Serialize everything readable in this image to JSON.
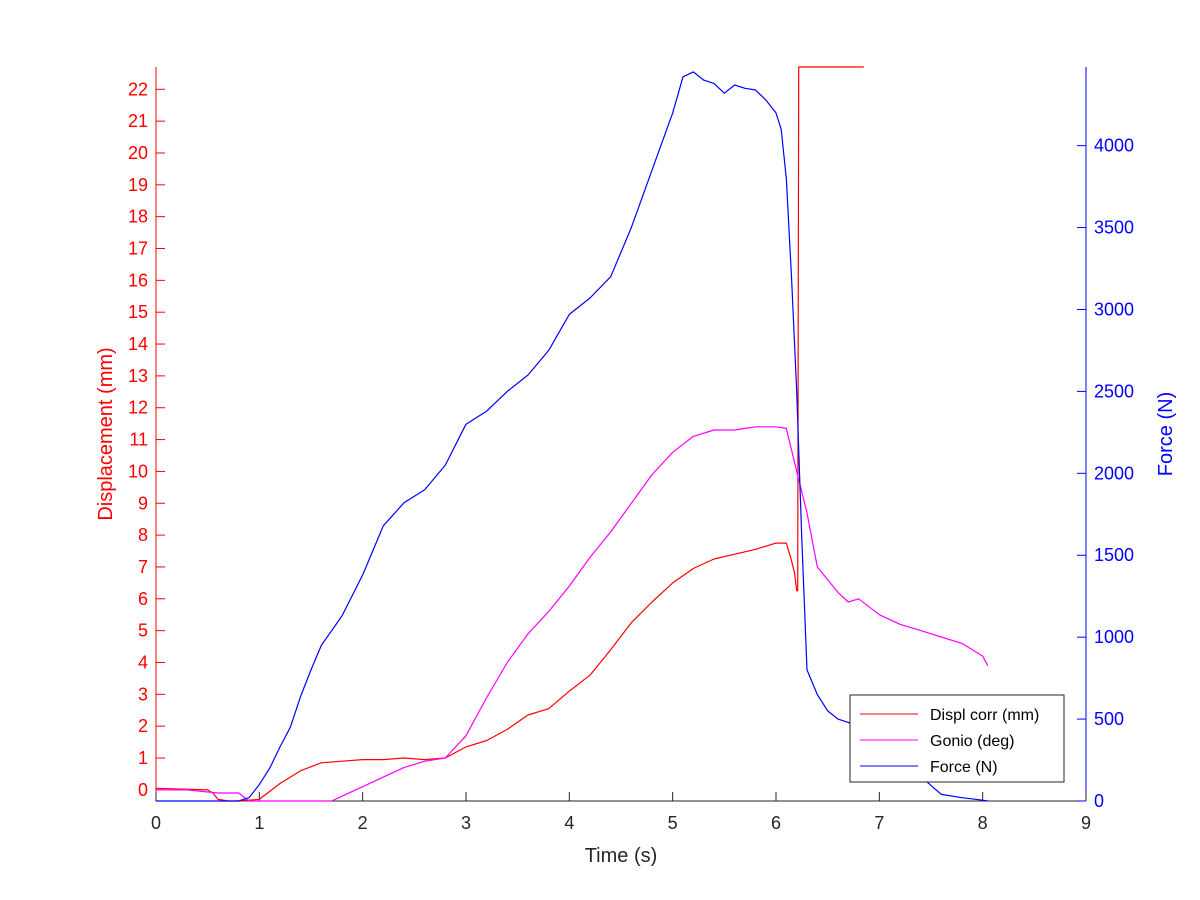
{
  "chart_data": {
    "type": "line",
    "xlabel": "Time (s)",
    "ylabel_left": "Displacement (mm)",
    "ylabel_right": "Force (N)",
    "xlim": [
      0,
      9
    ],
    "ylim_left": [
      -0.35,
      22.7
    ],
    "ylim_right": [
      0,
      4480
    ],
    "x_ticks": [
      0,
      1,
      2,
      3,
      4,
      5,
      6,
      7,
      8,
      9
    ],
    "y_left_ticks": [
      0,
      1,
      2,
      3,
      4,
      5,
      6,
      7,
      8,
      9,
      10,
      11,
      12,
      13,
      14,
      15,
      16,
      17,
      18,
      19,
      20,
      21,
      22
    ],
    "y_right_ticks": [
      0,
      500,
      1000,
      1500,
      2000,
      2500,
      3000,
      3500,
      4000
    ],
    "grid": false,
    "legend_position": "bottom-right",
    "colors": {
      "left_axis": "#ff0000",
      "right_axis": "#0000ff",
      "displ": "#ff0000",
      "gonio": "#ff00ff",
      "force": "#0000ff"
    },
    "series": [
      {
        "name": "Displ corr (mm)",
        "axis": "left",
        "color": "#ff0000",
        "x": [
          0,
          0.5,
          0.55,
          0.6,
          0.7,
          0.8,
          1.0,
          1.2,
          1.4,
          1.6,
          1.8,
          2.0,
          2.2,
          2.4,
          2.6,
          2.8,
          3.0,
          3.2,
          3.4,
          3.6,
          3.8,
          4.0,
          4.2,
          4.4,
          4.6,
          4.8,
          5.0,
          5.2,
          5.4,
          5.6,
          5.8,
          6.0,
          6.1,
          6.15,
          6.18,
          6.2,
          6.21,
          6.22,
          6.23,
          6.5,
          6.85
        ],
        "y": [
          0.05,
          0.0,
          -0.1,
          -0.3,
          -0.35,
          -0.35,
          -0.3,
          0.2,
          0.6,
          0.85,
          0.9,
          0.95,
          0.95,
          1.0,
          0.95,
          1.0,
          1.35,
          1.55,
          1.9,
          2.35,
          2.55,
          3.1,
          3.6,
          4.4,
          5.25,
          5.9,
          6.5,
          6.95,
          7.25,
          7.4,
          7.55,
          7.75,
          7.75,
          7.2,
          6.8,
          6.25,
          6.25,
          22.7,
          22.7,
          22.7,
          22.7
        ]
      },
      {
        "name": "Gonio (deg)",
        "axis": "left",
        "color": "#ff00ff",
        "x": [
          0,
          0.3,
          0.6,
          0.8,
          0.9,
          1.7,
          1.8,
          2.0,
          2.2,
          2.4,
          2.6,
          2.8,
          3.0,
          3.2,
          3.4,
          3.6,
          3.8,
          4.0,
          4.2,
          4.4,
          4.6,
          4.8,
          5.0,
          5.2,
          5.4,
          5.5,
          5.6,
          5.7,
          5.8,
          5.9,
          6.0,
          6.1,
          6.2,
          6.3,
          6.4,
          6.5,
          6.6,
          6.7,
          6.8,
          7.0,
          7.2,
          7.4,
          7.6,
          7.8,
          8.0,
          8.05
        ],
        "y": [
          0.0,
          0.0,
          -0.1,
          -0.1,
          -0.35,
          -0.35,
          -0.2,
          0.1,
          0.4,
          0.7,
          0.9,
          1.0,
          1.7,
          2.9,
          4.0,
          4.9,
          5.6,
          6.4,
          7.3,
          8.1,
          9.0,
          9.9,
          10.6,
          11.1,
          11.3,
          11.3,
          11.3,
          11.35,
          11.4,
          11.4,
          11.4,
          11.35,
          10.0,
          8.7,
          7.0,
          6.6,
          6.2,
          5.9,
          6.0,
          5.5,
          5.2,
          5.0,
          4.8,
          4.6,
          4.2,
          3.9
        ]
      },
      {
        "name": "Force (N)",
        "axis": "right",
        "color": "#0000ff",
        "x": [
          0,
          0.2,
          0.4,
          0.6,
          0.8,
          0.9,
          1.0,
          1.1,
          1.2,
          1.3,
          1.4,
          1.5,
          1.6,
          1.8,
          2.0,
          2.2,
          2.4,
          2.6,
          2.8,
          3.0,
          3.2,
          3.4,
          3.6,
          3.8,
          4.0,
          4.2,
          4.4,
          4.6,
          4.8,
          5.0,
          5.1,
          5.2,
          5.3,
          5.4,
          5.5,
          5.6,
          5.7,
          5.8,
          5.9,
          6.0,
          6.05,
          6.1,
          6.15,
          6.2,
          6.25,
          6.3,
          6.4,
          6.5,
          6.6,
          6.7,
          6.8,
          7.0,
          7.2,
          7.4,
          7.6,
          7.8,
          8.0,
          8.05
        ],
        "y": [
          0,
          0,
          0,
          0,
          0,
          20,
          100,
          200,
          330,
          450,
          640,
          800,
          950,
          1130,
          1380,
          1680,
          1820,
          1900,
          2050,
          2300,
          2380,
          2500,
          2600,
          2750,
          2970,
          3070,
          3200,
          3500,
          3850,
          4200,
          4420,
          4450,
          4400,
          4380,
          4320,
          4370,
          4350,
          4340,
          4280,
          4200,
          4100,
          3800,
          3200,
          2500,
          1600,
          800,
          650,
          550,
          500,
          480,
          450,
          420,
          300,
          150,
          40,
          20,
          5,
          0
        ]
      }
    ]
  }
}
